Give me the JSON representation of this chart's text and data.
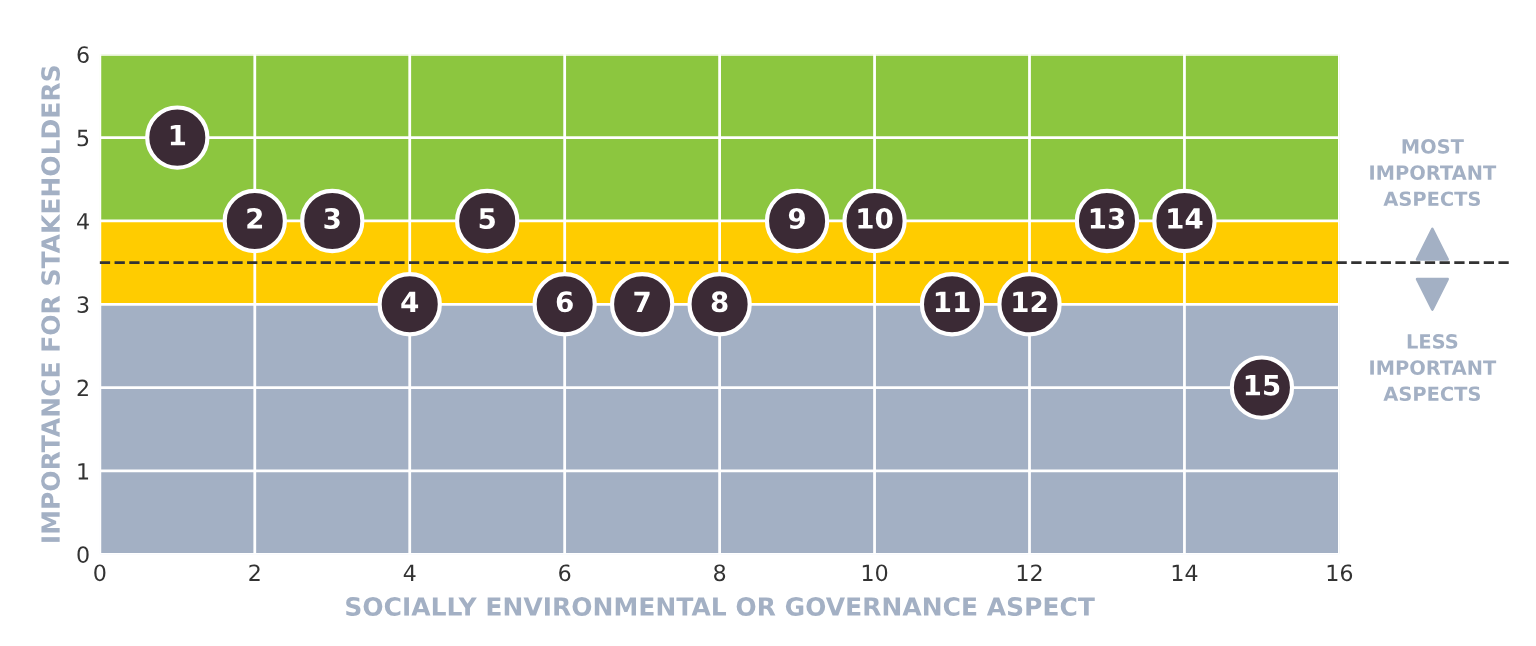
{
  "chart_data": {
    "type": "scatter",
    "xlabel": "SOCIALLY ENVIRONMENTAL OR GOVERNANCE ASPECT",
    "ylabel": "IMPORTANCE FOR STAKEHOLDERS",
    "x": [
      1,
      2,
      3,
      4,
      5,
      6,
      7,
      8,
      9,
      10,
      11,
      12,
      13,
      14,
      15
    ],
    "series": [
      {
        "color": "#3b2a35",
        "values": [
          5,
          4,
          4,
          3,
          4,
          3,
          3,
          3,
          4,
          4,
          3,
          3,
          4,
          4,
          2
        ]
      }
    ],
    "value_labels": [
      "1",
      "2",
      "3",
      "4",
      "5",
      "6",
      "7",
      "8",
      "9",
      "10",
      "11",
      "12",
      "13",
      "14",
      "15"
    ],
    "marker": "circle",
    "xlim": [
      0,
      16
    ],
    "xticks": [
      0,
      2,
      4,
      6,
      8,
      10,
      12,
      14,
      16
    ],
    "ylim": [
      0,
      6
    ],
    "yticks": [
      0,
      1,
      2,
      3,
      4,
      5,
      6
    ],
    "grid": true,
    "bands": [
      {
        "axis": "y",
        "from": 0,
        "to": 3,
        "color": "#a3b0c4"
      },
      {
        "axis": "y",
        "from": 3,
        "to": 4,
        "color": "#ffcc00"
      },
      {
        "axis": "y",
        "from": 4,
        "to": 6,
        "color": "#8cc63f"
      }
    ],
    "ref_lines": [
      {
        "axis": "y",
        "value": 3.5,
        "color": "#333333",
        "line_style": "dashed"
      }
    ],
    "annotations": [
      "MOST\nIMPORTANT\nASPECTS",
      "LESS\nIMPORTANT\nASPECTS"
    ]
  }
}
